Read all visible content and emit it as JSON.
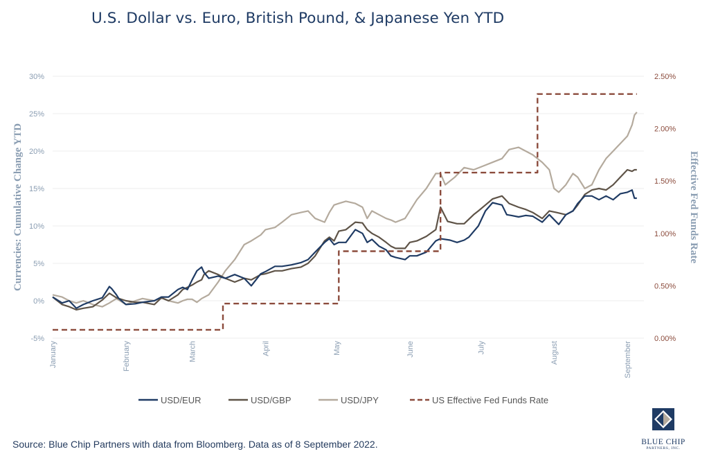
{
  "title": "U.S. Dollar vs. Euro, British Pound, & Japanese Yen YTD",
  "source": "Source: Blue Chip Partners with data from Bloomberg. Data as of 8 September 2022.",
  "logo": {
    "name": "BLUE CHIP",
    "sub": "PARTNERS, INC."
  },
  "colors": {
    "eur": "#1f3b64",
    "gbp": "#5e5347",
    "jpy": "#b4aa9d",
    "fed": "#8b4b3c",
    "grid": "#ececec",
    "axis_left": "#8a9db2",
    "axis_right": "#8b4b3c"
  },
  "chart_data": {
    "type": "line",
    "ylabel": "Currencies: Cumulative Change YTD",
    "y2label": "Effective Fed Funds Rate",
    "ylim": [
      -5,
      30
    ],
    "y2lim": [
      0,
      2.5
    ],
    "yticks": [
      "30%",
      "25%",
      "20%",
      "15%",
      "10%",
      "5%",
      "0%",
      "-5%"
    ],
    "y2ticks": [
      "2.50%",
      "2.00%",
      "1.50%",
      "1.00%",
      "0.50%",
      "0.00%"
    ],
    "xticks": [
      "January",
      "February",
      "March",
      "April",
      "May",
      "June",
      "July",
      "August",
      "September"
    ],
    "xtick_days": [
      0,
      31,
      59,
      90,
      120,
      151,
      181,
      212,
      243
    ],
    "xlim": [
      0,
      250
    ],
    "legend_position": "bottom",
    "series": [
      {
        "name": "USD/EUR",
        "axis": "left",
        "x": [
          0,
          4,
          7,
          10,
          13,
          17,
          21,
          24,
          25,
          27,
          28,
          31,
          35,
          38,
          43,
          46,
          49,
          53,
          55,
          57,
          59,
          61,
          63,
          64,
          66,
          70,
          73,
          77,
          81,
          84,
          88,
          90,
          94,
          97,
          101,
          105,
          108,
          111,
          115,
          117,
          119,
          121,
          124,
          128,
          131,
          133,
          135,
          138,
          141,
          143,
          145,
          149,
          151,
          154,
          158,
          162,
          164,
          168,
          171,
          174,
          176,
          180,
          183,
          186,
          190,
          192,
          194,
          197,
          200,
          203,
          207,
          210,
          214,
          217,
          220,
          222,
          225,
          228,
          231,
          234,
          237,
          240,
          243,
          245,
          246,
          247
        ],
        "y": [
          0.5,
          -0.3,
          0,
          -1,
          -0.5,
          0,
          0.4,
          1.9,
          1.6,
          0.8,
          0.3,
          -0.5,
          -0.4,
          -0.2,
          0,
          0.5,
          0.5,
          1.5,
          1.8,
          1.5,
          2.8,
          4.0,
          4.5,
          3.8,
          3.0,
          3.3,
          3.0,
          3.5,
          3.0,
          2.0,
          3.6,
          3.9,
          4.6,
          4.6,
          4.8,
          5.1,
          5.5,
          6.5,
          7.8,
          8.3,
          7.5,
          7.8,
          7.8,
          9.5,
          9.0,
          7.8,
          8.2,
          7.3,
          6.8,
          6.0,
          5.8,
          5.5,
          6.0,
          6.0,
          6.5,
          8.0,
          8.3,
          8.1,
          7.8,
          8.1,
          8.5,
          10.0,
          12.0,
          13.1,
          12.8,
          11.5,
          11.4,
          11.2,
          11.4,
          11.3,
          10.5,
          11.5,
          10.2,
          11.5,
          12.0,
          13.0,
          14.0,
          14.0,
          13.5,
          14.0,
          13.5,
          14.3,
          14.5,
          14.8,
          13.7,
          13.7
        ]
      },
      {
        "name": "USD/GBP",
        "axis": "left",
        "x": [
          0,
          4,
          7,
          10,
          13,
          17,
          21,
          24,
          27,
          31,
          35,
          38,
          43,
          46,
          49,
          53,
          55,
          57,
          59,
          61,
          63,
          64,
          66,
          70,
          73,
          77,
          81,
          84,
          88,
          90,
          94,
          97,
          101,
          105,
          108,
          111,
          115,
          117,
          119,
          121,
          124,
          128,
          131,
          133,
          135,
          138,
          141,
          143,
          145,
          149,
          151,
          154,
          158,
          162,
          164,
          167,
          171,
          174,
          178,
          180,
          183,
          186,
          190,
          193,
          197,
          200,
          203,
          207,
          210,
          213,
          217,
          220,
          222,
          225,
          228,
          231,
          234,
          237,
          240,
          243,
          245,
          246,
          247
        ],
        "y": [
          0.5,
          -0.5,
          -0.8,
          -1.2,
          -1,
          -0.8,
          0.1,
          1.0,
          0.4,
          0,
          -0.2,
          -0.2,
          -0.5,
          0.4,
          0,
          0.8,
          1.5,
          1.8,
          2.1,
          2.5,
          2.8,
          3.5,
          4.0,
          3.5,
          3.0,
          2.5,
          3.0,
          2.8,
          3.5,
          3.6,
          4.0,
          4.0,
          4.3,
          4.5,
          5.0,
          6.0,
          8.0,
          8.5,
          8.0,
          9.3,
          9.5,
          10.5,
          10.4,
          9.5,
          9.0,
          8.5,
          7.8,
          7.3,
          7.0,
          7.0,
          7.8,
          8.0,
          8.6,
          9.5,
          12.5,
          10.6,
          10.3,
          10.3,
          11.5,
          12.0,
          12.8,
          13.6,
          14.0,
          13.0,
          12.5,
          12.2,
          11.8,
          11.0,
          12.0,
          11.8,
          11.5,
          12.0,
          12.8,
          14.2,
          14.8,
          15.0,
          14.8,
          15.5,
          16.5,
          17.5,
          17.3,
          17.5,
          17.5
        ]
      },
      {
        "name": "USD/JPY",
        "axis": "left",
        "x": [
          0,
          4,
          7,
          10,
          13,
          17,
          21,
          24,
          27,
          31,
          35,
          38,
          43,
          46,
          49,
          53,
          55,
          57,
          59,
          61,
          63,
          66,
          70,
          73,
          77,
          81,
          84,
          88,
          90,
          94,
          97,
          101,
          105,
          108,
          111,
          115,
          117,
          119,
          121,
          124,
          128,
          131,
          133,
          135,
          138,
          141,
          143,
          145,
          149,
          151,
          154,
          158,
          162,
          164,
          166,
          170,
          174,
          178,
          182,
          186,
          190,
          193,
          197,
          200,
          203,
          207,
          210,
          212,
          214,
          217,
          220,
          222,
          225,
          228,
          231,
          234,
          237,
          240,
          243,
          245,
          246,
          247
        ],
        "y": [
          0.8,
          0.5,
          0,
          -0.3,
          0,
          -0.5,
          -0.8,
          -0.3,
          0.3,
          -0.5,
          0,
          0.3,
          0,
          0.4,
          0,
          -0.3,
          0,
          0.2,
          0.2,
          -0.2,
          0.3,
          0.8,
          2.5,
          4.0,
          5.5,
          7.5,
          8.0,
          8.8,
          9.5,
          9.8,
          10.5,
          11.5,
          11.8,
          12.0,
          11.0,
          10.5,
          11.8,
          12.8,
          13.0,
          13.3,
          13.0,
          12.5,
          11.0,
          12.0,
          11.5,
          11.0,
          10.8,
          10.5,
          11.0,
          12.0,
          13.5,
          15.0,
          17.0,
          17.0,
          15.5,
          16.5,
          17.8,
          17.5,
          18.0,
          18.5,
          19.0,
          20.2,
          20.5,
          20.0,
          19.5,
          18.5,
          17.5,
          15.0,
          14.5,
          15.5,
          17.0,
          16.5,
          15.0,
          15.5,
          17.5,
          19.0,
          20.0,
          21.0,
          22.0,
          23.5,
          24.8,
          25.2
        ]
      },
      {
        "name": "US Effective Fed Funds Rate",
        "axis": "right",
        "step": true,
        "x": [
          0,
          72,
          72,
          121,
          121,
          164,
          164,
          205,
          205,
          247
        ],
        "y": [
          0.08,
          0.08,
          0.33,
          0.33,
          0.83,
          0.83,
          1.58,
          1.58,
          2.33,
          2.33
        ]
      }
    ]
  }
}
